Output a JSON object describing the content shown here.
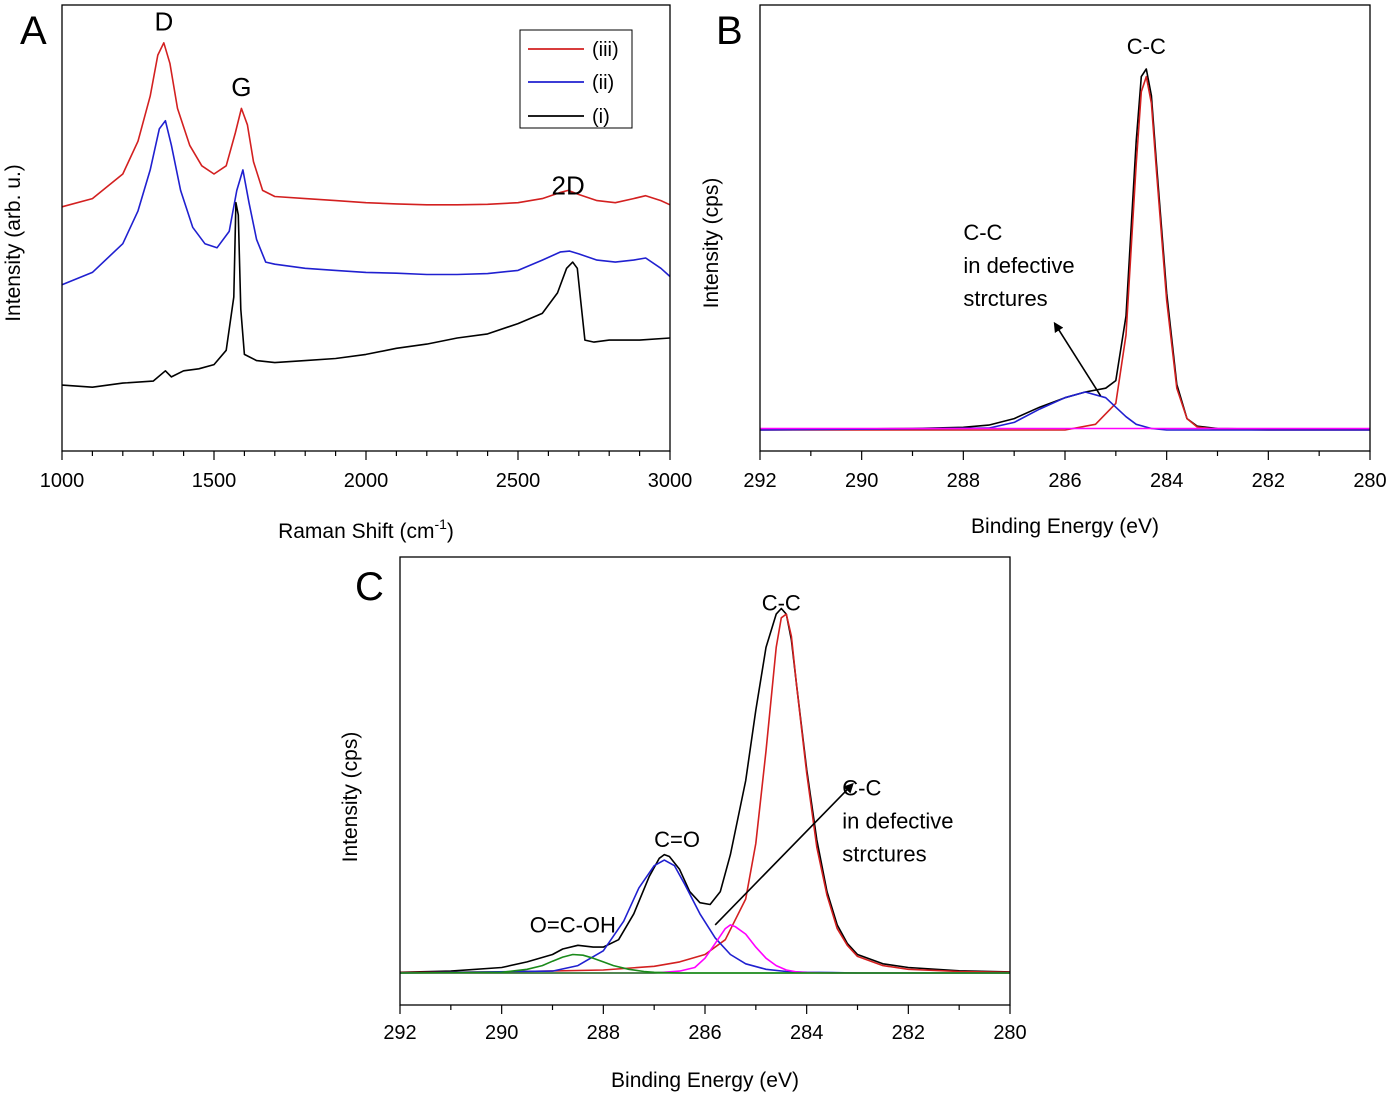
{
  "chart_data": [
    {
      "panel": "A",
      "type": "line",
      "xlabel": "Raman Shift (cm",
      "xlabel_sup": "-1",
      "xlabel_end": ")",
      "ylabel": "Intensity (arb. u.)",
      "xlim": [
        1000,
        3000
      ],
      "ylim": [
        0,
        100
      ],
      "x_ticks": [
        1000,
        1500,
        2000,
        2500,
        3000
      ],
      "y_ticks": false,
      "grid": false,
      "legend_position": "top-right",
      "legend": [
        "(iii)",
        "(ii)",
        "(i)"
      ],
      "annotations": [
        {
          "text": "D",
          "x": 1335,
          "y": 95
        },
        {
          "text": "G",
          "x": 1590,
          "y": 79
        },
        {
          "text": "2D",
          "x": 2665,
          "y": 55
        }
      ],
      "series": [
        {
          "name": "(iii)",
          "color": "#d32020",
          "x": [
            1000,
            1100,
            1200,
            1250,
            1290,
            1315,
            1335,
            1355,
            1380,
            1420,
            1460,
            1500,
            1540,
            1570,
            1590,
            1610,
            1630,
            1660,
            1700,
            1800,
            1900,
            2000,
            2100,
            2200,
            2300,
            2400,
            2500,
            2580,
            2640,
            2665,
            2700,
            2760,
            2820,
            2880,
            2920,
            2970,
            3000
          ],
          "y": [
            52,
            54,
            60,
            68,
            79,
            89,
            92,
            87,
            76,
            67,
            62,
            60,
            62,
            70,
            76,
            72,
            63,
            56,
            54.5,
            54,
            53.5,
            53,
            52.7,
            52.5,
            52.5,
            52.6,
            53,
            54,
            55.5,
            56,
            55,
            53.5,
            53,
            54,
            54.7,
            53.5,
            52.5
          ]
        },
        {
          "name": "(ii)",
          "color": "#2020d0",
          "x": [
            1000,
            1100,
            1200,
            1250,
            1290,
            1320,
            1340,
            1360,
            1390,
            1430,
            1470,
            1510,
            1550,
            1575,
            1595,
            1615,
            1640,
            1670,
            1700,
            1800,
            1900,
            2000,
            2100,
            2200,
            2300,
            2400,
            2500,
            2580,
            2640,
            2670,
            2700,
            2760,
            2820,
            2880,
            2920,
            2970,
            3000
          ],
          "y": [
            33,
            36,
            43,
            51,
            61,
            71,
            73,
            67,
            56,
            47,
            43,
            42,
            46,
            56,
            61,
            53,
            44,
            38.5,
            38,
            37,
            36.5,
            36,
            35.8,
            35.5,
            35.5,
            35.7,
            36.5,
            39,
            41,
            41.2,
            40.5,
            39,
            38.5,
            39,
            39.5,
            37,
            35
          ]
        },
        {
          "name": "(i)",
          "color": "#000000",
          "x": [
            1000,
            1100,
            1200,
            1300,
            1340,
            1360,
            1400,
            1450,
            1500,
            1540,
            1565,
            1572,
            1580,
            1588,
            1600,
            1640,
            1700,
            1800,
            1900,
            2000,
            2100,
            2200,
            2300,
            2400,
            2500,
            2580,
            2630,
            2660,
            2680,
            2695,
            2705,
            2720,
            2750,
            2800,
            2900,
            3000
          ],
          "y": [
            8.5,
            8,
            9,
            9.5,
            12,
            10.5,
            12,
            12.5,
            13.5,
            17,
            30,
            53,
            50,
            27,
            16,
            14.5,
            14,
            14.5,
            15,
            16,
            17.5,
            18.5,
            20,
            21,
            23.5,
            26,
            31,
            37,
            38.5,
            37,
            30,
            19.5,
            19,
            19.5,
            19.5,
            20
          ]
        }
      ]
    },
    {
      "panel": "B",
      "type": "line",
      "xlabel": "Binding Energy (eV)",
      "ylabel": "Intensity (cps)",
      "xlim": [
        292,
        280
      ],
      "ylim": [
        0,
        100
      ],
      "x_ticks": [
        292,
        290,
        288,
        286,
        284,
        282,
        280
      ],
      "y_ticks": false,
      "grid": false,
      "annotations": [
        {
          "text": "C-C",
          "x": 284.4,
          "y": 99
        },
        {
          "lines": [
            "C-C",
            "in defective",
            "strctures"
          ],
          "x": 288.0,
          "y": 50,
          "arrow_from": [
            285.3,
            9
          ],
          "arrow_to": [
            286.2,
            28
          ]
        }
      ],
      "series": [
        {
          "name": "",
          "color": "#000000",
          "x": [
            292,
            290,
            289,
            288,
            287.5,
            287,
            286.5,
            286,
            285.6,
            285.2,
            285,
            284.8,
            284.6,
            284.5,
            284.4,
            284.3,
            284.2,
            284,
            283.8,
            283.6,
            283.4,
            283,
            282,
            280
          ],
          "y": [
            0.3,
            0.3,
            0.4,
            0.7,
            1.3,
            3,
            6,
            8.5,
            10,
            11,
            13,
            30,
            76,
            93,
            95,
            88,
            70,
            36,
            12,
            3,
            1,
            0.4,
            0.2,
            0.2
          ]
        },
        {
          "name": "",
          "color": "#d32020",
          "x": [
            292,
            286,
            285.4,
            285,
            284.8,
            284.6,
            284.5,
            284.4,
            284.3,
            284.2,
            284,
            283.8,
            283.6,
            283.4,
            283,
            282,
            280
          ],
          "y": [
            0,
            0,
            1.5,
            7,
            25,
            70,
            89,
            93,
            86,
            68,
            34,
            11,
            3,
            0.8,
            0.2,
            0,
            0
          ]
        },
        {
          "name": "",
          "color": "#2020d0",
          "x": [
            292,
            287.5,
            287,
            286.5,
            286,
            285.6,
            285.2,
            285,
            284.8,
            284.6,
            284.3,
            284,
            283.5,
            280
          ],
          "y": [
            0,
            0.5,
            2,
            5.5,
            8.5,
            10,
            8.5,
            6,
            3.5,
            1.5,
            0.4,
            0,
            0,
            0
          ]
        },
        {
          "name": "",
          "color": "#ff00ff",
          "x": [
            292,
            280
          ],
          "y": [
            0.4,
            0.4
          ]
        }
      ]
    },
    {
      "panel": "C",
      "type": "line",
      "xlabel": "Binding Energy (eV)",
      "ylabel": "Intensity (cps)",
      "xlim": [
        292,
        280
      ],
      "ylim": [
        0,
        100
      ],
      "x_ticks": [
        292,
        290,
        288,
        286,
        284,
        282,
        280
      ],
      "y_ticks": false,
      "grid": false,
      "annotations": [
        {
          "text": "C-C",
          "x": 284.5,
          "y": 98
        },
        {
          "text": "C=O",
          "x": 286.55,
          "y": 34
        },
        {
          "text": "O=C-OH",
          "x": 288.6,
          "y": 11
        },
        {
          "lines": [
            "C-C",
            "in defective",
            "strctures"
          ],
          "x": 283.3,
          "y": 48,
          "arrow_from": [
            285.8,
            13
          ],
          "arrow_to": [
            283.1,
            51
          ]
        }
      ],
      "series": [
        {
          "name": "",
          "color": "#000000",
          "x": [
            292,
            291,
            290,
            289.5,
            289,
            288.8,
            288.5,
            288.2,
            288,
            287.7,
            287.4,
            287.1,
            286.9,
            286.8,
            286.7,
            286.5,
            286.3,
            286.1,
            285.9,
            285.7,
            285.5,
            285.2,
            285,
            284.8,
            284.6,
            284.5,
            284.4,
            284.3,
            284.2,
            284,
            283.8,
            283.6,
            283.4,
            283.2,
            283,
            282.5,
            282,
            281,
            280
          ],
          "y": [
            0.2,
            0.5,
            1.5,
            3,
            5,
            6.5,
            7.5,
            7,
            7,
            9,
            16,
            26,
            31,
            32,
            31.5,
            28,
            22,
            19,
            18.5,
            22,
            32,
            52,
            71,
            88,
            97,
            98.5,
            97,
            90,
            78,
            55,
            36,
            22,
            13,
            8,
            5,
            2.5,
            1.5,
            0.6,
            0.3
          ]
        },
        {
          "name": "",
          "color": "#d32020",
          "x": [
            292,
            290,
            288,
            287,
            286.5,
            286,
            285.6,
            285.2,
            285,
            284.8,
            284.6,
            284.5,
            284.4,
            284.3,
            284.2,
            284,
            283.8,
            283.6,
            283.4,
            283.2,
            283,
            282.5,
            282,
            281,
            280
          ],
          "y": [
            0.1,
            0.3,
            0.8,
            1.8,
            3,
            5,
            9,
            20,
            35,
            60,
            88,
            96,
            97,
            91,
            78,
            54,
            34,
            21,
            12,
            7.5,
            4.5,
            2,
            1,
            0.4,
            0.2
          ]
        },
        {
          "name": "",
          "color": "#2020d0",
          "x": [
            292,
            289,
            288.5,
            288,
            287.6,
            287.3,
            287,
            286.8,
            286.6,
            286.4,
            286.1,
            285.8,
            285.5,
            285.2,
            284.8,
            284.4,
            284,
            283.5,
            283,
            280
          ],
          "y": [
            0,
            0.5,
            2,
            6,
            14,
            23,
            29,
            30.5,
            29,
            24,
            16,
            9.5,
            5,
            2.5,
            1,
            0.4,
            0.2,
            0.1,
            0,
            0
          ]
        },
        {
          "name": "",
          "color": "#ff00ff",
          "x": [
            292,
            287,
            286.5,
            286.2,
            286,
            285.8,
            285.6,
            285.5,
            285.4,
            285.2,
            285,
            284.8,
            284.6,
            284.4,
            284.2,
            284,
            283.5,
            280
          ],
          "y": [
            0,
            0,
            0.5,
            1.5,
            4,
            8,
            12,
            13,
            12.5,
            10.5,
            7,
            4,
            2,
            0.8,
            0.3,
            0.1,
            0,
            0
          ]
        },
        {
          "name": "",
          "color": "#1a8a1a",
          "x": [
            292,
            290,
            289.5,
            289.2,
            289,
            288.8,
            288.6,
            288.4,
            288.2,
            288,
            287.8,
            287.5,
            287.2,
            287,
            286.5,
            280
          ],
          "y": [
            0,
            0.2,
            1,
            2,
            3.2,
            4.3,
            5,
            4.8,
            4,
            3,
            2,
            1,
            0.4,
            0.2,
            0,
            0
          ]
        },
        {
          "name": "",
          "color": "#1a8a1a",
          "x": [
            292,
            280
          ],
          "y": [
            0,
            0
          ]
        }
      ]
    }
  ]
}
